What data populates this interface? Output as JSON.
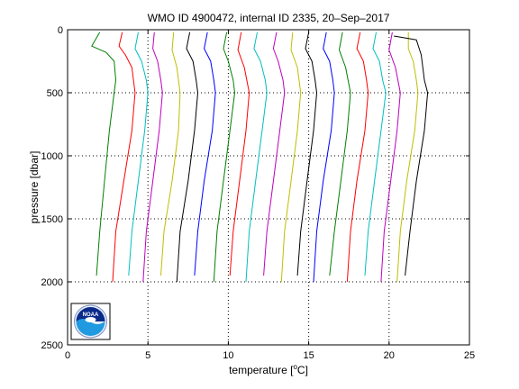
{
  "chart_data": {
    "type": "line",
    "title": "WMO ID 4900472, internal ID 2335, 20–Sep–2017",
    "xlabel_prefix": "temperature [",
    "xlabel_unit": "o",
    "xlabel_suffix": "C]",
    "ylabel": "pressure [dbar]",
    "xlim": [
      0,
      25
    ],
    "ylim": [
      0,
      2500
    ],
    "y_reversed": true,
    "x_ticks": [
      0,
      5,
      10,
      15,
      20,
      25
    ],
    "y_ticks": [
      0,
      500,
      1000,
      1500,
      2000,
      2500
    ],
    "grid": "dotted",
    "logo_text": "NOAA",
    "series": [
      {
        "color": "#008000",
        "points": [
          [
            2.0,
            20
          ],
          [
            1.5,
            130
          ],
          [
            2.4,
            180
          ],
          [
            2.9,
            250
          ],
          [
            3.0,
            400
          ],
          [
            2.9,
            500
          ],
          [
            2.6,
            800
          ],
          [
            2.3,
            1200
          ],
          [
            2.0,
            1600
          ],
          [
            1.8,
            1950
          ]
        ]
      },
      {
        "color": "#ff0000",
        "points": [
          [
            3.4,
            20
          ],
          [
            3.2,
            130
          ],
          [
            3.6,
            200
          ],
          [
            4.0,
            300
          ],
          [
            4.2,
            500
          ],
          [
            4.0,
            800
          ],
          [
            3.5,
            1200
          ],
          [
            3.0,
            1600
          ],
          [
            2.8,
            2000
          ]
        ]
      },
      {
        "color": "#00bfbf",
        "points": [
          [
            4.4,
            20
          ],
          [
            4.2,
            150
          ],
          [
            4.6,
            250
          ],
          [
            4.9,
            400
          ],
          [
            5.0,
            500
          ],
          [
            4.8,
            800
          ],
          [
            4.4,
            1200
          ],
          [
            4.0,
            1600
          ],
          [
            3.8,
            1950
          ]
        ]
      },
      {
        "color": "#bf00bf",
        "points": [
          [
            5.4,
            20
          ],
          [
            5.3,
            150
          ],
          [
            5.6,
            250
          ],
          [
            5.8,
            400
          ],
          [
            5.9,
            500
          ],
          [
            5.7,
            800
          ],
          [
            5.3,
            1200
          ],
          [
            4.9,
            1600
          ],
          [
            4.7,
            2000
          ]
        ]
      },
      {
        "color": "#bfbf00",
        "points": [
          [
            6.6,
            20
          ],
          [
            6.5,
            160
          ],
          [
            6.8,
            300
          ],
          [
            7.0,
            500
          ],
          [
            6.9,
            800
          ],
          [
            6.5,
            1200
          ],
          [
            6.0,
            1600
          ],
          [
            5.8,
            1950
          ]
        ]
      },
      {
        "color": "#000000",
        "points": [
          [
            7.6,
            20
          ],
          [
            7.4,
            150
          ],
          [
            7.8,
            250
          ],
          [
            8.0,
            400
          ],
          [
            8.1,
            500
          ],
          [
            7.9,
            800
          ],
          [
            7.5,
            1200
          ],
          [
            7.0,
            1600
          ],
          [
            6.8,
            2000
          ]
        ]
      },
      {
        "color": "#0000ff",
        "points": [
          [
            8.7,
            20
          ],
          [
            8.5,
            150
          ],
          [
            8.9,
            250
          ],
          [
            9.1,
            400
          ],
          [
            9.2,
            500
          ],
          [
            9.0,
            800
          ],
          [
            8.5,
            1200
          ],
          [
            8.1,
            1600
          ],
          [
            7.9,
            1950
          ]
        ]
      },
      {
        "color": "#008000",
        "points": [
          [
            9.9,
            20
          ],
          [
            9.7,
            150
          ],
          [
            10.0,
            250
          ],
          [
            10.3,
            400
          ],
          [
            10.4,
            500
          ],
          [
            10.1,
            800
          ],
          [
            9.7,
            1200
          ],
          [
            9.3,
            1600
          ],
          [
            9.1,
            2000
          ]
        ]
      },
      {
        "color": "#ff0000",
        "points": [
          [
            10.8,
            20
          ],
          [
            10.6,
            160
          ],
          [
            11.0,
            300
          ],
          [
            11.3,
            500
          ],
          [
            11.1,
            800
          ],
          [
            10.7,
            1200
          ],
          [
            10.3,
            1600
          ],
          [
            10.1,
            1950
          ]
        ]
      },
      {
        "color": "#00bfbf",
        "points": [
          [
            11.8,
            20
          ],
          [
            11.6,
            150
          ],
          [
            12.0,
            250
          ],
          [
            12.3,
            400
          ],
          [
            12.4,
            500
          ],
          [
            12.1,
            800
          ],
          [
            11.7,
            1200
          ],
          [
            11.3,
            1600
          ],
          [
            11.1,
            2000
          ]
        ]
      },
      {
        "color": "#bf00bf",
        "points": [
          [
            13.0,
            20
          ],
          [
            12.8,
            150
          ],
          [
            13.1,
            250
          ],
          [
            13.4,
            400
          ],
          [
            13.5,
            500
          ],
          [
            13.2,
            800
          ],
          [
            12.8,
            1200
          ],
          [
            12.4,
            1600
          ],
          [
            12.2,
            1950
          ]
        ]
      },
      {
        "color": "#bfbf00",
        "points": [
          [
            14.0,
            20
          ],
          [
            13.9,
            160
          ],
          [
            14.3,
            300
          ],
          [
            14.5,
            500
          ],
          [
            14.3,
            800
          ],
          [
            13.9,
            1200
          ],
          [
            13.5,
            1600
          ],
          [
            13.3,
            2000
          ]
        ]
      },
      {
        "color": "#000000",
        "points": [
          [
            15.0,
            20
          ],
          [
            14.8,
            150
          ],
          [
            15.2,
            250
          ],
          [
            15.4,
            400
          ],
          [
            15.5,
            500
          ],
          [
            15.3,
            800
          ],
          [
            14.9,
            1200
          ],
          [
            14.5,
            1600
          ],
          [
            14.3,
            1950
          ]
        ]
      },
      {
        "color": "#0000ff",
        "points": [
          [
            16.1,
            20
          ],
          [
            15.9,
            150
          ],
          [
            16.3,
            250
          ],
          [
            16.5,
            400
          ],
          [
            16.6,
            500
          ],
          [
            16.4,
            800
          ],
          [
            15.9,
            1200
          ],
          [
            15.5,
            1600
          ],
          [
            15.3,
            2000
          ]
        ]
      },
      {
        "color": "#008000",
        "points": [
          [
            17.1,
            20
          ],
          [
            16.9,
            160
          ],
          [
            17.3,
            300
          ],
          [
            17.6,
            500
          ],
          [
            17.4,
            800
          ],
          [
            17.0,
            1200
          ],
          [
            16.6,
            1600
          ],
          [
            16.3,
            1950
          ]
        ]
      },
      {
        "color": "#ff0000",
        "points": [
          [
            18.2,
            20
          ],
          [
            18.0,
            150
          ],
          [
            18.4,
            250
          ],
          [
            18.6,
            400
          ],
          [
            18.7,
            500
          ],
          [
            18.5,
            800
          ],
          [
            18.0,
            1200
          ],
          [
            17.6,
            1600
          ],
          [
            17.4,
            2000
          ]
        ]
      },
      {
        "color": "#00bfbf",
        "points": [
          [
            19.2,
            20
          ],
          [
            19.0,
            150
          ],
          [
            19.4,
            250
          ],
          [
            19.6,
            400
          ],
          [
            19.8,
            500
          ],
          [
            19.5,
            800
          ],
          [
            19.1,
            1200
          ],
          [
            18.7,
            1600
          ],
          [
            18.5,
            1950
          ]
        ]
      },
      {
        "color": "#bf00bf",
        "points": [
          [
            20.2,
            20
          ],
          [
            20.0,
            160
          ],
          [
            20.4,
            300
          ],
          [
            20.7,
            500
          ],
          [
            20.5,
            800
          ],
          [
            20.1,
            1200
          ],
          [
            19.7,
            1600
          ],
          [
            19.5,
            2000
          ]
        ]
      },
      {
        "color": "#bfbf00",
        "points": [
          [
            21.2,
            20
          ],
          [
            21.2,
            150
          ],
          [
            21.5,
            250
          ],
          [
            21.7,
            400
          ],
          [
            21.8,
            500
          ],
          [
            21.6,
            800
          ],
          [
            21.1,
            1200
          ],
          [
            20.7,
            1600
          ],
          [
            20.5,
            2000
          ]
        ]
      },
      {
        "color": "#000000",
        "points": [
          [
            20.3,
            50
          ],
          [
            21.7,
            80
          ],
          [
            22.0,
            200
          ],
          [
            22.2,
            400
          ],
          [
            22.4,
            500
          ],
          [
            22.2,
            800
          ],
          [
            21.7,
            1200
          ],
          [
            21.3,
            1600
          ],
          [
            21.0,
            1950
          ]
        ]
      }
    ]
  }
}
